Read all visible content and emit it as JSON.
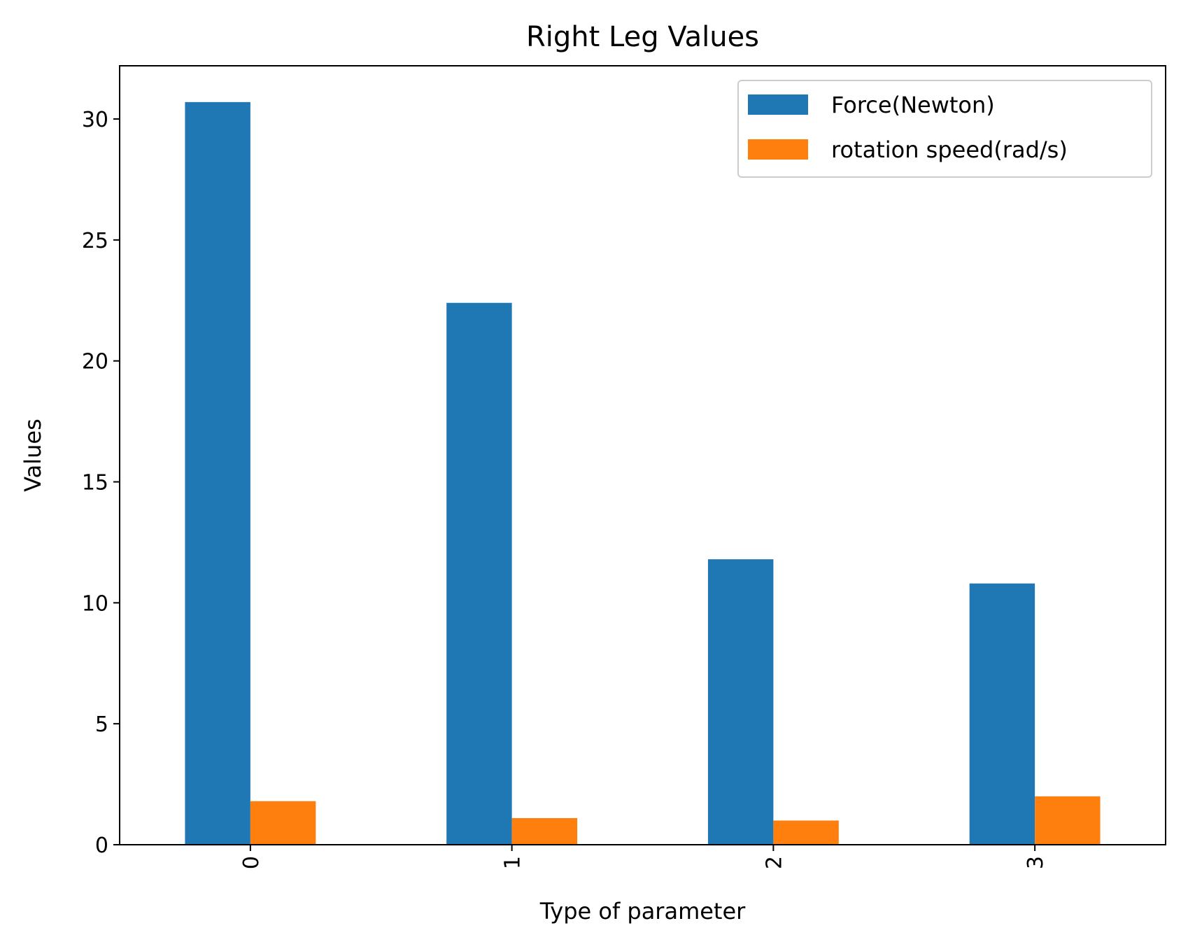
{
  "chart_data": {
    "type": "bar",
    "title": "Right Leg Values",
    "xlabel": "Type of parameter",
    "ylabel": "Values",
    "categories": [
      "0",
      "1",
      "2",
      "3"
    ],
    "series": [
      {
        "name": "Force(Newton)",
        "values": [
          30.7,
          22.4,
          11.8,
          10.8
        ],
        "color": "#1f77b4"
      },
      {
        "name": "rotation speed(rad/s)",
        "values": [
          1.8,
          1.1,
          1.0,
          2.0
        ],
        "color": "#ff7f0e"
      }
    ],
    "ylim": [
      0,
      32.2
    ],
    "yticks": [
      "0",
      "5",
      "10",
      "15",
      "20",
      "25",
      "30"
    ],
    "xtick_rotation": 90,
    "legend_position": "top-right",
    "grid": false
  }
}
